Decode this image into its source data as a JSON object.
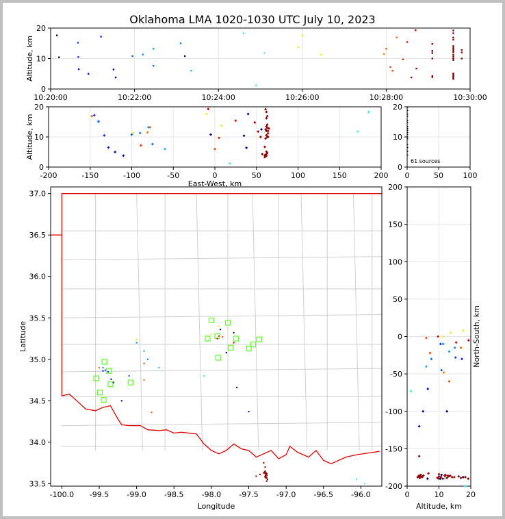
{
  "chart_data": {
    "title": "Oklahoma LMA 1020-1030 UTC July 10, 2023",
    "panels": [
      {
        "id": "time-altitude",
        "type": "scatter",
        "xlabel": "",
        "ylabel": "Altitude, km",
        "x_ticks": [
          "10:20:00",
          "10:22:00",
          "10:24:00",
          "10:26:00",
          "10:28:00",
          "10:30:00"
        ],
        "x_range_minutes": [
          0,
          10
        ],
        "ylim": [
          0,
          20
        ],
        "y_ticks": [
          0,
          10,
          20
        ]
      },
      {
        "id": "eastwest-altitude",
        "type": "scatter",
        "xlabel": "East-West, km",
        "ylabel": "Altitude, km",
        "xlim": [
          -200,
          200
        ],
        "x_ticks": [
          -200,
          -150,
          -100,
          -50,
          0,
          50,
          100,
          150,
          200
        ],
        "ylim": [
          0,
          20
        ],
        "y_ticks": [
          0,
          10,
          20
        ]
      },
      {
        "id": "altitude-histogram",
        "type": "scatter",
        "xlim": [
          0,
          100
        ],
        "x_ticks": [
          0,
          50,
          100
        ],
        "ylim": [
          0,
          20
        ],
        "y_ticks": [
          0,
          10,
          20
        ],
        "annotation": "61 sources"
      },
      {
        "id": "plan-view",
        "type": "scatter",
        "xlabel": "Longitude",
        "ylabel": "Latitude",
        "xlim": [
          -100.15,
          -95.72
        ],
        "x_ticks": [
          "-100.0",
          "-99.5",
          "-99.0",
          "-98.5",
          "-98.0",
          "-97.5",
          "-97.0",
          "-96.5",
          "-96.0"
        ],
        "ylim": [
          33.47,
          37.08
        ],
        "y_ticks": [
          "33.5",
          "34.0",
          "34.5",
          "35.0",
          "35.5",
          "36.0",
          "36.5",
          "37.0"
        ]
      },
      {
        "id": "northsouth-altitude",
        "type": "scatter",
        "xlabel": "Altitude, km",
        "ylabel": "North-South, km",
        "xlim": [
          0,
          20
        ],
        "x_ticks": [
          0,
          10,
          20
        ],
        "ylim": [
          -200,
          200
        ],
        "y_ticks": [
          -200,
          -150,
          -100,
          -50,
          0,
          50,
          100,
          150,
          200
        ]
      }
    ],
    "stations": [
      [
        -98.0,
        35.47
      ],
      [
        -97.78,
        35.44
      ],
      [
        -98.05,
        35.25
      ],
      [
        -97.92,
        35.28
      ],
      [
        -97.67,
        35.25
      ],
      [
        -97.36,
        35.24
      ],
      [
        -97.44,
        35.18
      ],
      [
        -97.74,
        35.14
      ],
      [
        -97.5,
        35.13
      ],
      [
        -97.91,
        35.02
      ],
      [
        -99.43,
        34.97
      ],
      [
        -99.37,
        34.86
      ],
      [
        -99.54,
        34.77
      ],
      [
        -99.08,
        34.72
      ],
      [
        -99.35,
        34.7
      ],
      [
        -99.49,
        34.6
      ],
      [
        -99.44,
        34.51
      ]
    ],
    "sources": [
      {
        "t": 0.65,
        "ew": -140,
        "ns": -28,
        "lon": -99.42,
        "lat": 34.87,
        "z": 15.2,
        "c": "#0048ff"
      },
      {
        "t": 0.66,
        "ew": -133,
        "ns": -10,
        "lon": -99.38,
        "lat": 34.85,
        "z": 10.5,
        "c": "#0030ff"
      },
      {
        "t": 0.67,
        "ew": -128,
        "ns": -70,
        "lon": -99.34,
        "lat": 34.76,
        "z": 6.5,
        "c": "#0010d8"
      },
      {
        "t": 0.9,
        "ew": -120,
        "ns": -100,
        "lon": -99.31,
        "lat": 34.72,
        "z": 5.0,
        "c": "#0000c0"
      },
      {
        "t": 1.2,
        "ew": -145,
        "ns": -30,
        "lon": -99.45,
        "lat": 34.86,
        "z": 17.2,
        "c": "#0030ff"
      },
      {
        "t": 1.55,
        "ew": -110,
        "ns": -120,
        "lon": -99.2,
        "lat": 34.5,
        "z": 3.8,
        "c": "#0000b8"
      },
      {
        "t": 1.95,
        "ew": -100,
        "ns": -45,
        "lon": -99.1,
        "lat": 34.8,
        "z": 10.8,
        "c": "#0064ff"
      },
      {
        "t": 2.2,
        "ew": -90,
        "ns": -10,
        "lon": -99.0,
        "lat": 35.2,
        "z": 11.3,
        "c": "#0090ff"
      },
      {
        "t": 2.45,
        "ew": -80,
        "ns": -20,
        "lon": -98.9,
        "lat": 35.1,
        "z": 13.2,
        "c": "#00a0ff"
      },
      {
        "t": 2.45,
        "ew": -75,
        "ns": -30,
        "lon": -98.85,
        "lat": 35.0,
        "z": 7.6,
        "c": "#0070ff"
      },
      {
        "t": 3.1,
        "ew": -140,
        "ns": -15,
        "lon": -99.45,
        "lat": 34.9,
        "z": 15.0,
        "c": "#1090ff"
      },
      {
        "t": 3.35,
        "ew": -60,
        "ns": -40,
        "lon": -98.7,
        "lat": 34.9,
        "z": 6.0,
        "c": "#20b0ff"
      },
      {
        "t": 4.6,
        "ew": 185,
        "ns": -200,
        "lon": -96.06,
        "lat": 33.55,
        "z": 18.3,
        "c": "#30e0ff"
      },
      {
        "t": 5.1,
        "ew": 172,
        "ns": -190,
        "lon": -95.95,
        "lat": 33.5,
        "z": 11.8,
        "c": "#60f0d0"
      },
      {
        "t": 4.9,
        "ew": 18,
        "ns": -73,
        "lon": -98.1,
        "lat": 34.8,
        "z": 1.2,
        "c": "#30ffb0"
      },
      {
        "t": 5.9,
        "ew": 8,
        "ns": 5,
        "lon": -97.9,
        "lat": 35.4,
        "z": 13.7,
        "c": "#c8ff30"
      },
      {
        "t": 6.0,
        "ew": -10,
        "ns": 8,
        "lon": -98.0,
        "lat": 35.3,
        "z": 17.6,
        "c": "#e8f020"
      },
      {
        "t": 6.45,
        "ew": -98,
        "ns": 0,
        "lon": -99.0,
        "lat": 35.24,
        "z": 11.3,
        "c": "#f0f020"
      },
      {
        "t": 7.95,
        "ew": -81,
        "ns": -48,
        "lon": -98.9,
        "lat": 34.75,
        "z": 11.5,
        "c": "#ff8000"
      },
      {
        "t": 8.0,
        "ew": -78,
        "ns": -60,
        "lon": -98.8,
        "lat": 34.36,
        "z": 13.2,
        "c": "#ff5000"
      },
      {
        "t": 8.1,
        "ew": -89,
        "ns": -22,
        "lon": -98.9,
        "lat": 34.95,
        "z": 7.2,
        "c": "#ff3800"
      },
      {
        "t": 8.15,
        "ew": 0,
        "ns": -2,
        "lon": -97.85,
        "lat": 35.27,
        "z": 6.0,
        "c": "#ff4000"
      },
      {
        "t": 8.25,
        "ew": -148,
        "ns": -15,
        "lon": -99.5,
        "lat": 34.9,
        "z": 16.9,
        "c": "#ff6000"
      },
      {
        "t": 8.4,
        "ew": 5,
        "ns": 0,
        "lon": -97.9,
        "lat": 35.28,
        "z": 9.7,
        "c": "#e02000"
      },
      {
        "t": 8.5,
        "ew": 25,
        "ns": -8,
        "lon": -97.7,
        "lat": 35.2,
        "z": 15.4,
        "c": "#d01000"
      },
      {
        "t": 8.7,
        "ew": -8,
        "ns": -5,
        "lon": -97.92,
        "lat": 35.25,
        "z": 19.3,
        "c": "#c00000"
      },
      {
        "t": 8.72,
        "ew": 60,
        "ns": -183,
        "lon": -97.28,
        "lat": 33.7,
        "z": 6.7,
        "c": "#b00000"
      },
      {
        "t": 8.6,
        "ew": 62,
        "ns": -160,
        "lon": -97.3,
        "lat": 33.75,
        "z": 3.8,
        "c": "#a00000"
      },
      {
        "t": 9.1,
        "ew": 48,
        "ns": -188,
        "lon": -97.4,
        "lat": 33.59,
        "z": 14.8,
        "c": "#a00000"
      },
      {
        "t": 9.1,
        "ew": 52,
        "ns": -186,
        "lon": -97.35,
        "lat": 33.61,
        "z": 11.8,
        "c": "#a00000"
      },
      {
        "t": 9.1,
        "ew": 55,
        "ns": -190,
        "lon": -97.3,
        "lat": 33.63,
        "z": 10.0,
        "c": "#a00000"
      },
      {
        "t": 9.1,
        "ew": 57,
        "ns": -185,
        "lon": -97.29,
        "lat": 33.64,
        "z": 4.3,
        "c": "#900000"
      },
      {
        "t": 9.1,
        "ew": 60,
        "ns": -187,
        "lon": -97.28,
        "lat": 33.65,
        "z": 3.9,
        "c": "#900000"
      },
      {
        "t": 9.6,
        "ew": 61,
        "ns": -190,
        "lon": -97.27,
        "lat": 33.57,
        "z": 19.2,
        "c": "#900000"
      },
      {
        "t": 9.6,
        "ew": 62,
        "ns": -188,
        "lon": -97.28,
        "lat": 33.58,
        "z": 18.3,
        "c": "#900000"
      },
      {
        "t": 9.6,
        "ew": 63,
        "ns": -189,
        "lon": -97.27,
        "lat": 33.59,
        "z": 16.9,
        "c": "#900000"
      },
      {
        "t": 9.6,
        "ew": 62,
        "ns": -187,
        "lon": -97.26,
        "lat": 33.6,
        "z": 16.2,
        "c": "#900000"
      },
      {
        "t": 9.6,
        "ew": 63,
        "ns": -188,
        "lon": -97.27,
        "lat": 33.61,
        "z": 14.1,
        "c": "#900000"
      },
      {
        "t": 9.6,
        "ew": 62,
        "ns": -186,
        "lon": -97.28,
        "lat": 33.62,
        "z": 13.5,
        "c": "#900000"
      },
      {
        "t": 9.6,
        "ew": 63,
        "ns": -187,
        "lon": -97.27,
        "lat": 33.6,
        "z": 13.0,
        "c": "#900000"
      },
      {
        "t": 9.6,
        "ew": 61,
        "ns": -189,
        "lon": -97.28,
        "lat": 33.58,
        "z": 12.5,
        "c": "#900000"
      },
      {
        "t": 9.6,
        "ew": 62,
        "ns": -186,
        "lon": -97.27,
        "lat": 33.63,
        "z": 12.0,
        "c": "#900000"
      },
      {
        "t": 9.6,
        "ew": 64,
        "ns": -190,
        "lon": -97.26,
        "lat": 33.57,
        "z": 11.2,
        "c": "#900000"
      },
      {
        "t": 9.6,
        "ew": 62,
        "ns": -188,
        "lon": -97.28,
        "lat": 33.59,
        "z": 10.6,
        "c": "#900000"
      },
      {
        "t": 9.6,
        "ew": 63,
        "ns": -187,
        "lon": -97.27,
        "lat": 33.61,
        "z": 10.0,
        "c": "#900000"
      },
      {
        "t": 9.6,
        "ew": 61,
        "ns": -189,
        "lon": -97.28,
        "lat": 33.58,
        "z": 9.5,
        "c": "#900000"
      },
      {
        "t": 9.6,
        "ew": 62,
        "ns": -186,
        "lon": -97.27,
        "lat": 33.62,
        "z": 5.1,
        "c": "#900000"
      },
      {
        "t": 9.6,
        "ew": 63,
        "ns": -188,
        "lon": -97.26,
        "lat": 33.6,
        "z": 4.7,
        "c": "#900000"
      },
      {
        "t": 9.6,
        "ew": 62,
        "ns": -187,
        "lon": -97.28,
        "lat": 33.59,
        "z": 4.4,
        "c": "#900000"
      },
      {
        "t": 9.6,
        "ew": 61,
        "ns": -189,
        "lon": -97.27,
        "lat": 33.57,
        "z": 4.0,
        "c": "#900000"
      },
      {
        "t": 9.6,
        "ew": 62,
        "ns": -186,
        "lon": -97.28,
        "lat": 33.63,
        "z": 3.7,
        "c": "#900000"
      },
      {
        "t": 9.6,
        "ew": 60,
        "ns": -188,
        "lon": -97.27,
        "lat": 33.6,
        "z": 3.3,
        "c": "#900000"
      },
      {
        "t": 9.8,
        "ew": 64,
        "ns": -185,
        "lon": -97.26,
        "lat": 33.62,
        "z": 12.0,
        "c": "#900000"
      },
      {
        "t": 9.8,
        "ew": 65,
        "ns": -186,
        "lon": -97.25,
        "lat": 33.55,
        "z": 12.8,
        "c": "#900000"
      },
      {
        "t": 9.8,
        "ew": 64,
        "ns": -184,
        "lon": -97.26,
        "lat": 33.53,
        "z": 10.0,
        "c": "#900000"
      },
      {
        "t": 9.1,
        "ew": 56,
        "ns": -100,
        "lon": -97.5,
        "lat": 34.37,
        "z": 12.5,
        "c": "#000080"
      },
      {
        "t": 1.5,
        "ew": 38,
        "ns": -190,
        "lon": -97.66,
        "lat": 34.66,
        "z": 6.4,
        "c": "#000070"
      },
      {
        "t": 3.2,
        "ew": -5,
        "ns": -185,
        "lon": -97.8,
        "lat": 35.08,
        "z": 10.8,
        "c": "#000080"
      },
      {
        "t": 0.15,
        "ew": 40,
        "ns": -188,
        "lon": -97.88,
        "lat": 35.36,
        "z": 17.6,
        "c": "#000080"
      },
      {
        "t": 0.2,
        "ew": 35,
        "ns": -190,
        "lon": -97.7,
        "lat": 35.32,
        "z": 10.4,
        "c": "#000080"
      }
    ],
    "histogram": [
      {
        "z": 19.8,
        "n": 1
      },
      {
        "z": 18.8,
        "n": 1
      },
      {
        "z": 17.6,
        "n": 1
      },
      {
        "z": 16.9,
        "n": 1
      },
      {
        "z": 15.5,
        "n": 1
      },
      {
        "z": 14.8,
        "n": 1
      },
      {
        "z": 13.5,
        "n": 1
      },
      {
        "z": 12.8,
        "n": 1
      },
      {
        "z": 12.2,
        "n": 1
      },
      {
        "z": 11.5,
        "n": 1
      },
      {
        "z": 10.8,
        "n": 1
      },
      {
        "z": 10.0,
        "n": 1
      },
      {
        "z": 9.4,
        "n": 1
      },
      {
        "z": 7.5,
        "n": 1
      },
      {
        "z": 6.5,
        "n": 1
      },
      {
        "z": 5.2,
        "n": 1
      },
      {
        "z": 4.0,
        "n": 1
      }
    ]
  }
}
